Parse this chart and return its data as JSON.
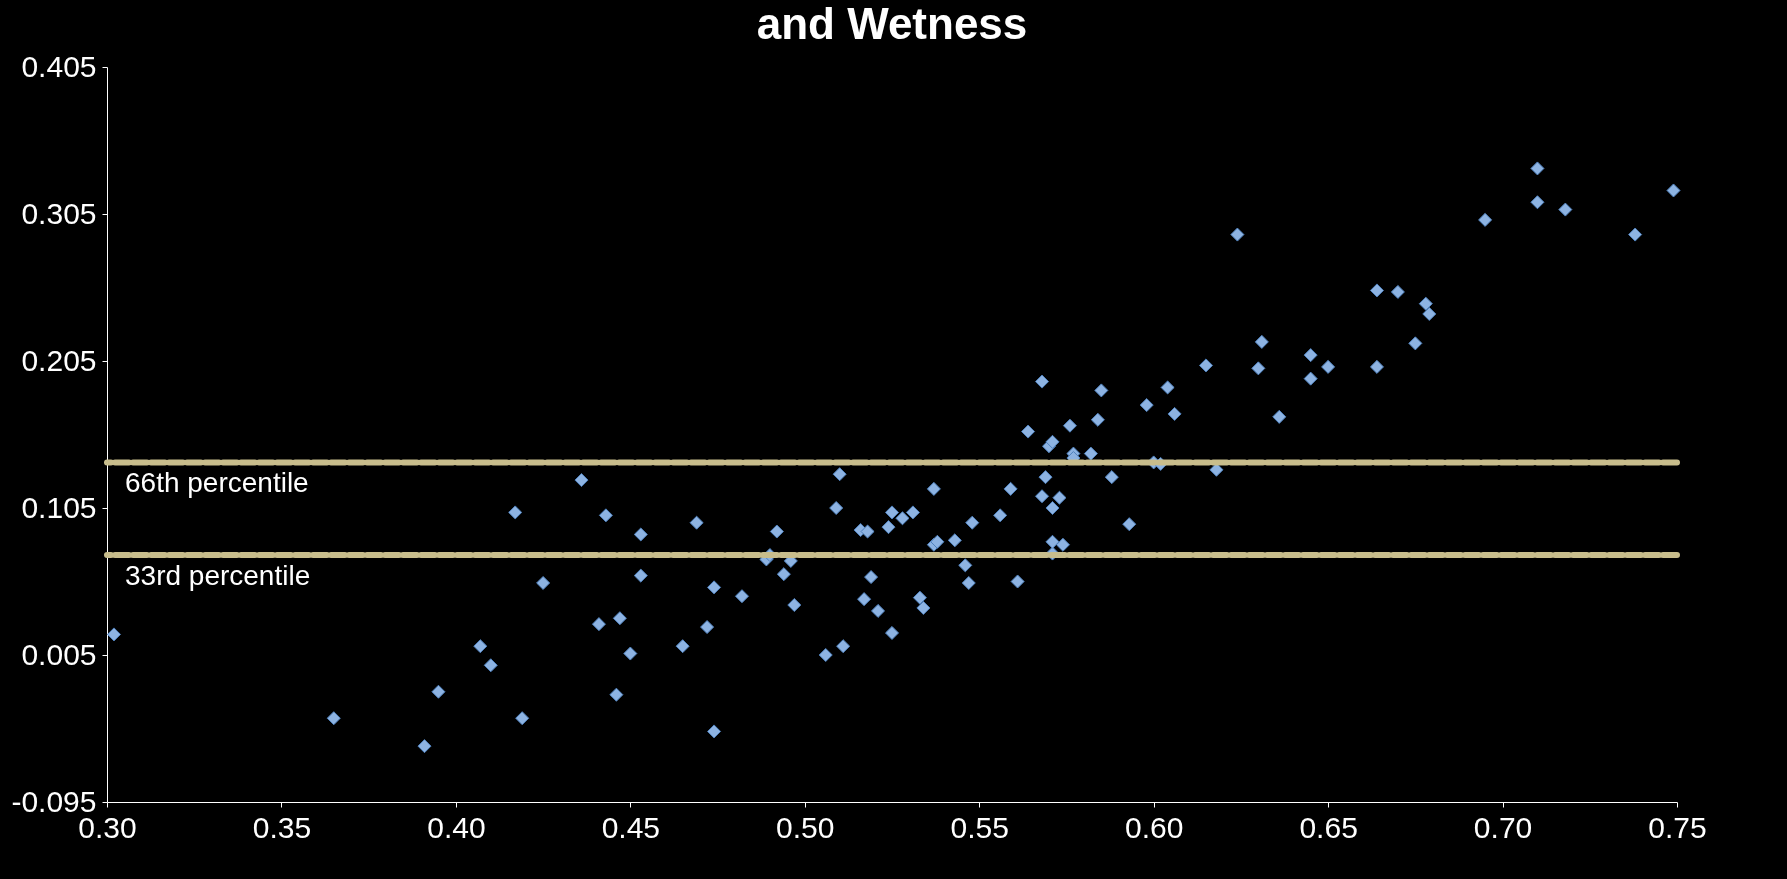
{
  "chart_data": {
    "type": "scatter",
    "title": "and Wetness",
    "x": [
      0.302,
      0.365,
      0.391,
      0.395,
      0.407,
      0.41,
      0.417,
      0.419,
      0.425,
      0.436,
      0.441,
      0.443,
      0.446,
      0.447,
      0.45,
      0.453,
      0.453,
      0.465,
      0.469,
      0.472,
      0.474,
      0.474,
      0.482,
      0.489,
      0.49,
      0.492,
      0.494,
      0.496,
      0.497,
      0.506,
      0.51,
      0.509,
      0.511,
      0.516,
      0.517,
      0.518,
      0.519,
      0.521,
      0.524,
      0.525,
      0.525,
      0.528,
      0.531,
      0.533,
      0.534,
      0.537,
      0.537,
      0.538,
      0.543,
      0.546,
      0.547,
      0.548,
      0.556,
      0.559,
      0.561,
      0.564,
      0.568,
      0.568,
      0.569,
      0.57,
      0.571,
      0.571,
      0.571,
      0.571,
      0.573,
      0.574,
      0.576,
      0.577,
      0.577,
      0.582,
      0.584,
      0.585,
      0.588,
      0.593,
      0.598,
      0.6,
      0.602,
      0.604,
      0.606,
      0.615,
      0.618,
      0.624,
      0.63,
      0.631,
      0.636,
      0.645,
      0.645,
      0.65,
      0.664,
      0.664,
      0.67,
      0.675,
      0.678,
      0.679,
      0.695,
      0.71,
      0.71,
      0.718,
      0.738,
      0.749
    ],
    "series": [
      {
        "color": "#8db3e2",
        "values": [
          0.019,
          -0.038,
          -0.057,
          -0.02,
          0.011,
          -0.002,
          0.102,
          -0.038,
          0.054,
          0.124,
          0.026,
          0.1,
          -0.022,
          0.03,
          0.006,
          0.087,
          0.059,
          0.011,
          0.095,
          0.024,
          -0.047,
          0.051,
          0.045,
          0.07,
          0.073,
          0.089,
          0.06,
          0.069,
          0.039,
          0.005,
          0.128,
          0.105,
          0.011,
          0.09,
          0.043,
          0.089,
          0.058,
          0.035,
          0.092,
          0.102,
          0.02,
          0.098,
          0.102,
          0.044,
          0.037,
          0.118,
          0.08,
          0.082,
          0.083,
          0.066,
          0.054,
          0.095,
          0.1,
          0.118,
          0.055,
          0.157,
          0.191,
          0.113,
          0.126,
          0.147,
          0.15,
          0.105,
          0.074,
          0.082,
          0.112,
          0.08,
          0.161,
          0.142,
          0.139,
          0.142,
          0.165,
          0.185,
          0.126,
          0.094,
          0.175,
          0.136,
          0.135,
          0.187,
          0.169,
          0.202,
          0.131,
          0.291,
          0.2,
          0.218,
          0.167,
          0.209,
          0.193,
          0.201,
          0.201,
          0.253,
          0.252,
          0.217,
          0.244,
          0.237,
          0.301,
          0.313,
          0.336,
          0.308,
          0.291,
          0.321
        ]
      }
    ],
    "xlim": [
      0.3,
      0.75
    ],
    "xticks": [
      {
        "value": 0.3,
        "label": "0.30"
      },
      {
        "value": 0.35,
        "label": "0.35"
      },
      {
        "value": 0.4,
        "label": "0.40"
      },
      {
        "value": 0.45,
        "label": "0.45"
      },
      {
        "value": 0.5,
        "label": "0.50"
      },
      {
        "value": 0.55,
        "label": "0.55"
      },
      {
        "value": 0.6,
        "label": "0.60"
      },
      {
        "value": 0.65,
        "label": "0.65"
      },
      {
        "value": 0.7,
        "label": "0.70"
      },
      {
        "value": 0.75,
        "label": "0.75"
      }
    ],
    "ylim": [
      -0.095,
      0.405
    ],
    "yticks": [
      -0.095,
      0.005,
      0.105,
      0.205,
      0.305,
      0.405
    ],
    "ref_lines": [
      {
        "axis": "y",
        "value": 0.136,
        "label": "66th percentile",
        "color": "#c8bd8c",
        "line_style": "dashed"
      },
      {
        "axis": "y",
        "value": 0.073,
        "label": "33rd percentile",
        "color": "#c8bd8c",
        "line_style": "dashed"
      }
    ],
    "marker": "diamond",
    "grid": false
  }
}
